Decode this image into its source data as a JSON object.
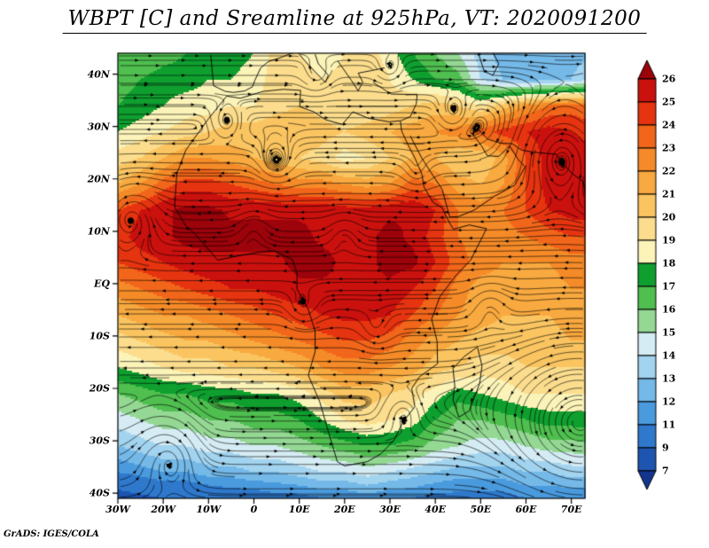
{
  "chart_data": {
    "type": "heatmap",
    "overlay": "streamlines",
    "title": "WBPT [C] and Sreamline at 925hPa, VT: 2020091200",
    "attribution": "GrADS: IGES/COLA",
    "variable": "WBPT [C]",
    "level": "925hPa",
    "valid_time": "2020091200",
    "lon_range": [
      -30,
      73
    ],
    "lat_range": [
      -41,
      44
    ],
    "x_axis": {
      "ticks": [
        {
          "label": "30W",
          "lon": -30
        },
        {
          "label": "20W",
          "lon": -20
        },
        {
          "label": "10W",
          "lon": -10
        },
        {
          "label": "0",
          "lon": 0
        },
        {
          "label": "10E",
          "lon": 10
        },
        {
          "label": "20E",
          "lon": 20
        },
        {
          "label": "30E",
          "lon": 30
        },
        {
          "label": "40E",
          "lon": 40
        },
        {
          "label": "50E",
          "lon": 50
        },
        {
          "label": "60E",
          "lon": 60
        },
        {
          "label": "70E",
          "lon": 70
        }
      ]
    },
    "y_axis": {
      "ticks": [
        {
          "label": "40N",
          "lat": 40
        },
        {
          "label": "30N",
          "lat": 30
        },
        {
          "label": "20N",
          "lat": 20
        },
        {
          "label": "10N",
          "lat": 10
        },
        {
          "label": "EQ",
          "lat": 0
        },
        {
          "label": "10S",
          "lat": -10
        },
        {
          "label": "20S",
          "lat": -20
        },
        {
          "label": "30S",
          "lat": -30
        },
        {
          "label": "40S",
          "lat": -40
        }
      ]
    },
    "colorbar": {
      "levels": [
        7,
        9,
        11,
        12,
        13,
        14,
        15,
        16,
        17,
        18,
        19,
        20,
        21,
        22,
        23,
        24,
        25,
        26
      ],
      "colors_low_to_high": [
        "#12368f",
        "#1e55b0",
        "#2f79cc",
        "#4a9ade",
        "#74b9e8",
        "#a2d3ef",
        "#d5ecf4",
        "#94d894",
        "#4fbf4f",
        "#0f9f2f",
        "#fbf3b8",
        "#fbdd8d",
        "#fac561",
        "#f8a93f",
        "#f58b28",
        "#f1661a",
        "#e63410",
        "#cb110e",
        "#9c030a"
      ]
    },
    "temperature_grid": {
      "lon_start": -30,
      "lon_step": 5,
      "lat_start": 44,
      "lat_step": -5,
      "ncols": 22,
      "nrows": 18,
      "values": [
        [
          16,
          16,
          16.5,
          17,
          17,
          17.5,
          18,
          19.5,
          19,
          18,
          19,
          19.5,
          18.5,
          17,
          16,
          15,
          13.5,
          12.5,
          12,
          12,
          12.5,
          13
        ],
        [
          16.5,
          17,
          17.5,
          17.5,
          18,
          18,
          18.5,
          19.5,
          20,
          19,
          19.5,
          20,
          19,
          18,
          17,
          16.5,
          14,
          13,
          12.5,
          12.5,
          13,
          14
        ],
        [
          17,
          17.5,
          18,
          18.5,
          18.5,
          19,
          19,
          19.5,
          20,
          19.5,
          19,
          19,
          19.5,
          20,
          20.5,
          20,
          19,
          20.5,
          22,
          23,
          23.5,
          23
        ],
        [
          18,
          18.5,
          19,
          19.5,
          20,
          20.5,
          20.5,
          21,
          21,
          20.5,
          20,
          20.5,
          21,
          21.5,
          22,
          22.5,
          23.5,
          24.5,
          25,
          25.5,
          25,
          24.5
        ],
        [
          19.5,
          20,
          21,
          22,
          22,
          21.5,
          21,
          20.5,
          20,
          19.5,
          18.5,
          19,
          20,
          21,
          21,
          20,
          20,
          21.5,
          24,
          25.5,
          25.8,
          25.5
        ],
        [
          21,
          22,
          23.5,
          24.5,
          24.5,
          24,
          23.5,
          23,
          22.5,
          22.5,
          22,
          21.5,
          22,
          23.5,
          23,
          21.5,
          21,
          22,
          24,
          25.5,
          25.8,
          25.8
        ],
        [
          24,
          25,
          25.8,
          26.3,
          26.3,
          25.8,
          25.8,
          25.8,
          25.8,
          25.8,
          25.5,
          25.5,
          25.8,
          26,
          25,
          23,
          22.5,
          23,
          24,
          25,
          25.5,
          25.5
        ],
        [
          24.5,
          25.5,
          25.8,
          26.3,
          26.3,
          26.3,
          26.3,
          26.3,
          26.3,
          25.8,
          25.8,
          25.8,
          26.3,
          25.8,
          24.5,
          23,
          22.5,
          22.5,
          23,
          23.5,
          24,
          24
        ],
        [
          24,
          24.5,
          25,
          25.5,
          25.8,
          25.8,
          25.8,
          25.8,
          26.3,
          26.3,
          25.8,
          25.8,
          26.3,
          26.3,
          25,
          23.5,
          22.5,
          22,
          22,
          22,
          22.5,
          22.5
        ],
        [
          22.5,
          23,
          23.5,
          24,
          24.5,
          25,
          25,
          25.5,
          25.8,
          25.8,
          25.8,
          25.8,
          25.8,
          25,
          24,
          22.5,
          21.5,
          21.5,
          21.5,
          21.5,
          22,
          22
        ],
        [
          21,
          21.5,
          22,
          22,
          22.5,
          23,
          23.5,
          24,
          24.5,
          25,
          25.3,
          25.3,
          25,
          24,
          23,
          22,
          21.5,
          21,
          21,
          21,
          21.5,
          21.5
        ],
        [
          19.5,
          20,
          20.5,
          21,
          21,
          21.5,
          22,
          22.5,
          23,
          23.5,
          24,
          24,
          23.5,
          22.5,
          21.5,
          21,
          20.5,
          20.5,
          20.5,
          20.5,
          21,
          21
        ],
        [
          18,
          18.5,
          19,
          19.5,
          19.5,
          20,
          20,
          20.5,
          21,
          22,
          22.5,
          22.5,
          22,
          21.5,
          20.5,
          20,
          19.5,
          19.5,
          20,
          20,
          20,
          20
        ],
        [
          16,
          16.5,
          17,
          17,
          17.5,
          17.5,
          18,
          18,
          18.5,
          19.5,
          20.5,
          20.5,
          20,
          19.5,
          18.5,
          17.5,
          18,
          18.5,
          19,
          19,
          19,
          19
        ],
        [
          14.5,
          15,
          15.5,
          15.5,
          16,
          16,
          16.5,
          16.5,
          17,
          18,
          19,
          19.5,
          19,
          18.5,
          17,
          16,
          16,
          16.5,
          17,
          17.5,
          17.5,
          17.5
        ],
        [
          13,
          13.5,
          14,
          14,
          14.5,
          14.5,
          15,
          15,
          15.5,
          16,
          16.5,
          17,
          17,
          16.5,
          15.5,
          15,
          14.5,
          14.5,
          15,
          15.5,
          15.5,
          16
        ],
        [
          11,
          11.5,
          12,
          12,
          12.5,
          12.5,
          13,
          13,
          13.5,
          14,
          14,
          14.5,
          14,
          13.5,
          13,
          12.5,
          12.5,
          12.5,
          13,
          13,
          13.5,
          13.5
        ],
        [
          8,
          8.5,
          9,
          9,
          9.5,
          10,
          10,
          10.5,
          10.5,
          11,
          11,
          11.5,
          11,
          11,
          10.5,
          10.5,
          10.5,
          10.5,
          11,
          11,
          11,
          11
        ]
      ]
    },
    "streamline_wind": {
      "zonal_profile": [
        [
          -41,
          9
        ],
        [
          -33,
          6
        ],
        [
          -25,
          1
        ],
        [
          -16,
          -3
        ],
        [
          -6,
          -4
        ],
        [
          2,
          -3
        ],
        [
          10,
          -5
        ],
        [
          18,
          -4.5
        ],
        [
          26,
          -1.5
        ],
        [
          34,
          1.5
        ],
        [
          44,
          3
        ]
      ],
      "vortices": [
        {
          "lon": -27,
          "lat": 13,
          "strength": 9,
          "radius": 5,
          "inflow": 0.18
        },
        {
          "lon": -19,
          "lat": -33,
          "strength": -9,
          "radius": 6,
          "inflow": 0.18
        },
        {
          "lon": 72,
          "lat": -28,
          "strength": 7,
          "radius": 14,
          "inflow": -0.04
        },
        {
          "lon": 68,
          "lat": 25,
          "strength": 5,
          "radius": 9,
          "inflow": 0.06
        },
        {
          "lon": 11,
          "lat": -5,
          "strength": -3.5,
          "radius": 3.5,
          "inflow": 0.12
        },
        {
          "lon": 27,
          "lat": -9,
          "strength": -3,
          "radius": 3.5,
          "inflow": 0.12
        },
        {
          "lon": 14,
          "lat": 40,
          "strength": 3.5,
          "radius": 2.8,
          "inflow": 0.12
        },
        {
          "lon": 30,
          "lat": 41,
          "strength": 3.5,
          "radius": 2.8,
          "inflow": 0.12
        },
        {
          "lon": 44,
          "lat": 33,
          "strength": 3,
          "radius": 3,
          "inflow": 0.1
        },
        {
          "lon": -6,
          "lat": 31,
          "strength": 2.5,
          "radius": 3,
          "inflow": 0.1
        },
        {
          "lon": 5,
          "lat": 22,
          "strength": -2.5,
          "radius": 4,
          "inflow": 0.05
        },
        {
          "lon": 52,
          "lat": -4,
          "strength": 3,
          "radius": 4,
          "inflow": 0.08
        },
        {
          "lon": 36,
          "lat": 20,
          "strength": -2,
          "radius": 3.5,
          "inflow": 0.06
        },
        {
          "lon": 0,
          "lat": 11,
          "strength": 3,
          "radius": 3.5,
          "inflow": 0.05
        },
        {
          "lon": 20,
          "lat": 10,
          "strength": 3,
          "radius": 3.5,
          "inflow": 0.05
        },
        {
          "lon": 33,
          "lat": -25,
          "strength": -2.5,
          "radius": 4,
          "inflow": 0.08
        }
      ]
    },
    "coastlines": [
      [
        [
          -6,
          35.8
        ],
        [
          -10,
          31.5
        ],
        [
          -15,
          25.5
        ],
        [
          -17,
          21
        ],
        [
          -17.5,
          14.7
        ],
        [
          -15,
          11
        ],
        [
          -13,
          9.5
        ],
        [
          -8,
          4.5
        ],
        [
          -4,
          5.2
        ],
        [
          1,
          6
        ],
        [
          4.5,
          6.2
        ],
        [
          8.5,
          4.6
        ],
        [
          9.5,
          2
        ],
        [
          9.5,
          -1
        ],
        [
          12,
          -5
        ],
        [
          13.5,
          -9
        ],
        [
          13.5,
          -13
        ],
        [
          12,
          -17.5
        ],
        [
          14.5,
          -22.5
        ],
        [
          16.5,
          -28.5
        ],
        [
          18.4,
          -34
        ],
        [
          20,
          -34.8
        ],
        [
          25,
          -34
        ],
        [
          28,
          -32.5
        ],
        [
          31,
          -29.8
        ],
        [
          32.8,
          -26.5
        ],
        [
          35.5,
          -23.5
        ],
        [
          34.8,
          -20
        ],
        [
          36.5,
          -17.8
        ],
        [
          40.5,
          -15.3
        ],
        [
          40.4,
          -11
        ],
        [
          39.2,
          -6.8
        ],
        [
          41,
          -2.5
        ],
        [
          44.5,
          1.5
        ],
        [
          47.8,
          4.5
        ],
        [
          51.3,
          10.5
        ],
        [
          47.5,
          11.2
        ],
        [
          44,
          10.4
        ],
        [
          43.2,
          11.5
        ],
        [
          41.5,
          14.5
        ],
        [
          39.5,
          15.5
        ],
        [
          37.5,
          18.5
        ],
        [
          37,
          21
        ],
        [
          35.5,
          24
        ],
        [
          34,
          26.5
        ],
        [
          32.6,
          29.1
        ],
        [
          32.3,
          31.1
        ],
        [
          29.8,
          30.9
        ],
        [
          25.2,
          31.6
        ],
        [
          21.8,
          32.8
        ],
        [
          19.5,
          30.4
        ],
        [
          15.8,
          31.3
        ],
        [
          13.2,
          32.8
        ],
        [
          10.1,
          33.8
        ],
        [
          10.3,
          36.9
        ],
        [
          6.5,
          37.1
        ],
        [
          2,
          36.7
        ],
        [
          -3,
          35.4
        ],
        [
          -6,
          35.8
        ]
      ],
      [
        [
          49.3,
          -12.1
        ],
        [
          50.3,
          -15.7
        ],
        [
          49.8,
          -19
        ],
        [
          47.5,
          -24.3
        ],
        [
          45.2,
          -25.5
        ],
        [
          43.9,
          -22.2
        ],
        [
          44.3,
          -19.5
        ],
        [
          43.9,
          -16.2
        ],
        [
          46.4,
          -13.9
        ],
        [
          49.3,
          -12.1
        ]
      ],
      [
        [
          34.5,
          28.2
        ],
        [
          37,
          24
        ],
        [
          39,
          21.3
        ],
        [
          41.5,
          18
        ],
        [
          43.2,
          12.7
        ],
        [
          45.1,
          12.8
        ],
        [
          48.5,
          14
        ],
        [
          53.1,
          16.7
        ],
        [
          57.5,
          18.8
        ],
        [
          59.8,
          22.3
        ],
        [
          58.2,
          23.8
        ],
        [
          56.4,
          26.3
        ],
        [
          54,
          24.3
        ],
        [
          51.5,
          24.4
        ],
        [
          50.2,
          26.3
        ],
        [
          48.4,
          28.4
        ],
        [
          48.8,
          30.1
        ],
        [
          51.5,
          27.6
        ],
        [
          54.5,
          26.8
        ],
        [
          57,
          26.7
        ],
        [
          59,
          25.5
        ],
        [
          61.7,
          25.1
        ],
        [
          66.7,
          24.7
        ],
        [
          67.9,
          23.2
        ],
        [
          70.2,
          21
        ],
        [
          72.6,
          19.5
        ],
        [
          73.4,
          15.8
        ],
        [
          74.3,
          11.5
        ]
      ],
      [
        [
          -9.5,
          43.6
        ],
        [
          -8.9,
          37.8
        ],
        [
          -6.3,
          36.7
        ],
        [
          -4.5,
          36.5
        ],
        [
          -2,
          36.8
        ],
        [
          -0.3,
          37.6
        ],
        [
          0.2,
          38.8
        ],
        [
          1.5,
          41.2
        ],
        [
          3.2,
          42.4
        ],
        [
          6,
          43.2
        ],
        [
          8,
          43.9
        ],
        [
          9.5,
          44.2
        ]
      ],
      [
        [
          9.8,
          44
        ],
        [
          12,
          41.8
        ],
        [
          15.8,
          38.4
        ],
        [
          16.4,
          39.8
        ],
        [
          14.2,
          42
        ],
        [
          13.5,
          43.8
        ]
      ],
      [
        [
          18.5,
          42.5
        ],
        [
          21.5,
          38.8
        ],
        [
          23,
          36.8
        ],
        [
          24,
          38.5
        ],
        [
          23,
          40.2
        ],
        [
          26,
          40.7
        ],
        [
          28.8,
          41.2
        ]
      ],
      [
        [
          26.3,
          38.4
        ],
        [
          30.3,
          36.2
        ],
        [
          36,
          36.1
        ],
        [
          35.8,
          34.3
        ],
        [
          34.5,
          31.9
        ],
        [
          32.4,
          31.1
        ]
      ],
      [
        [
          49.5,
          44
        ],
        [
          50.8,
          40.5
        ],
        [
          52.7,
          39.8
        ],
        [
          54,
          42
        ],
        [
          52.8,
          44
        ]
      ]
    ]
  }
}
